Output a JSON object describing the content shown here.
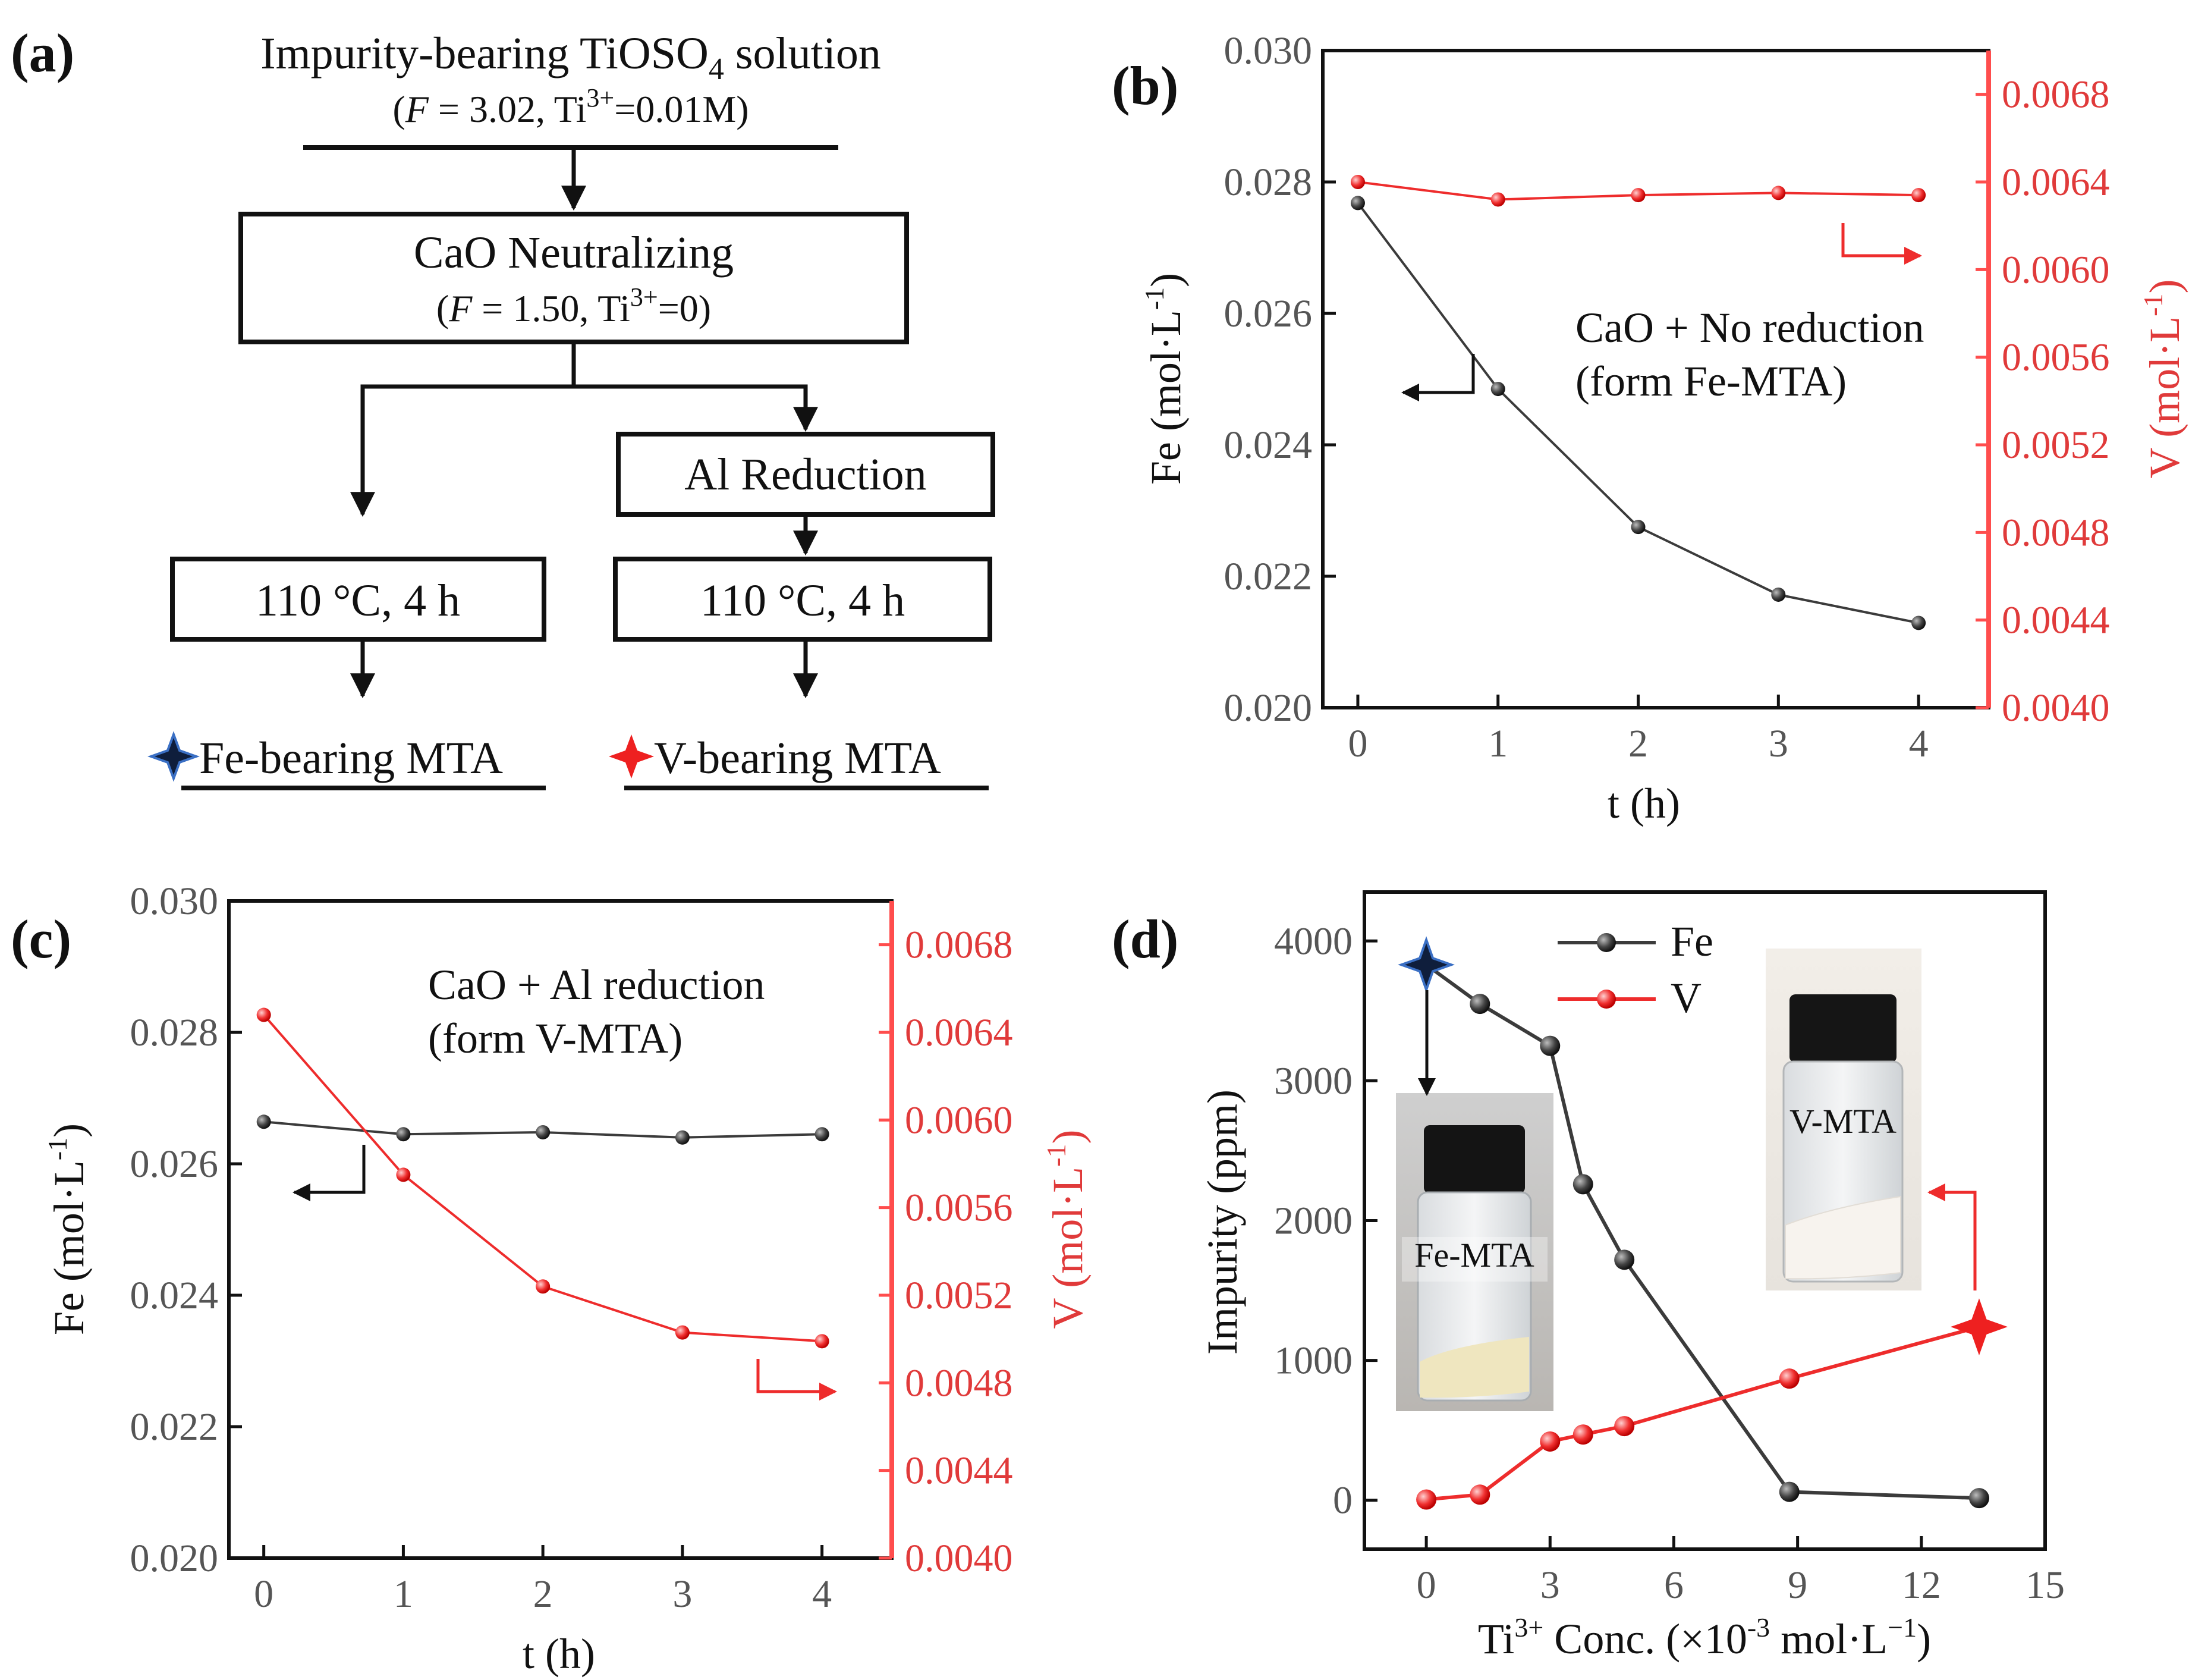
{
  "colors": {
    "fe": "#3b3b3b",
    "v": "#ee2c2c",
    "axis_red": "#ff4d4d",
    "fe_star": "#0f1e3c",
    "text": "#111111"
  },
  "panel_a": {
    "label": "(a)",
    "title": "Impurity-bearing TiOSO",
    "title_sub": "4",
    "title_end": " solution",
    "cond1_pre": "(",
    "cond1_f": "F",
    "cond1_mid": " = 3.02, Ti",
    "cond1_sup": "3+",
    "cond1_end": "=0.01M)",
    "step1": "CaO Neutralizing",
    "cond2_pre": "(",
    "cond2_f": "F",
    "cond2_mid": " = 1.50, Ti",
    "cond2_sup": "3+",
    "cond2_end": "=0)",
    "step2": "Al Reduction",
    "heat_left": "110 °C, 4 h",
    "heat_right": "110 °C, 4 h",
    "product_left": "Fe-bearing MTA",
    "product_right": "V-bearing MTA",
    "star_left_icon": "navy-star-icon",
    "star_right_icon": "red-star-icon"
  },
  "chart_data": [
    {
      "id": "b",
      "label": "(b)",
      "type": "line",
      "x": [
        0,
        1,
        2,
        3,
        4
      ],
      "xlabel": "t (h)",
      "xticks": [
        "0",
        "1",
        "2",
        "3",
        "4"
      ],
      "series": [
        {
          "name": "Fe",
          "axis": "left",
          "values": [
            0.02768,
            0.02485,
            0.02275,
            0.02172,
            0.02129
          ]
        },
        {
          "name": "V",
          "axis": "right",
          "values": [
            0.0064,
            0.00632,
            0.00634,
            0.00635,
            0.00634
          ]
        }
      ],
      "ylabel_left": "Fe (mol·L",
      "ylabel_left_sup": "-1",
      "ylabel_left_end": ")",
      "ylabel_right": "V (mol·L",
      "ylabel_right_sup": "-1",
      "ylabel_right_end": ")",
      "ylim_left": [
        0.02,
        0.03
      ],
      "ylim_right": [
        0.004,
        0.007
      ],
      "yticks_left": [
        "0.020",
        "0.022",
        "0.024",
        "0.026",
        "0.028",
        "0.030"
      ],
      "yticks_right": [
        "0.0040",
        "0.0044",
        "0.0048",
        "0.0052",
        "0.0056",
        "0.0060",
        "0.0064",
        "0.0068"
      ],
      "annotation_1": "CaO + No reduction",
      "annotation_2": "(form Fe-MTA)"
    },
    {
      "id": "c",
      "label": "(c)",
      "type": "line",
      "x": [
        0,
        1,
        2,
        3,
        4
      ],
      "xlabel": "t (h)",
      "xticks": [
        "0",
        "1",
        "2",
        "3",
        "4"
      ],
      "series": [
        {
          "name": "Fe",
          "axis": "left",
          "values": [
            0.02664,
            0.02645,
            0.02648,
            0.0264,
            0.02645
          ]
        },
        {
          "name": "V",
          "axis": "right",
          "values": [
            0.00648,
            0.00575,
            0.00524,
            0.00503,
            0.00499
          ]
        }
      ],
      "ylabel_left": "Fe (mol·L",
      "ylabel_left_sup": "-1",
      "ylabel_left_end": ")",
      "ylabel_right": "V (mol·L",
      "ylabel_right_sup": "-1",
      "ylabel_right_end": ")",
      "ylim_left": [
        0.02,
        0.03
      ],
      "ylim_right": [
        0.004,
        0.007
      ],
      "yticks_left": [
        "0.020",
        "0.022",
        "0.024",
        "0.026",
        "0.028",
        "0.030"
      ],
      "yticks_right": [
        "0.0040",
        "0.0044",
        "0.0048",
        "0.0052",
        "0.0056",
        "0.0060",
        "0.0064",
        "0.0068"
      ],
      "annotation_1": "CaO + Al reduction",
      "annotation_2": "(form V-MTA)"
    },
    {
      "id": "d",
      "label": "(d)",
      "type": "line",
      "xlabel": "Ti",
      "xlabel_sup": "3+",
      "xlabel_mid": " Conc. (×10",
      "xlabel_sup2": "-3",
      "xlabel_end": " mol·L",
      "xlabel_sup3": "−1",
      "xlabel_end2": ")",
      "ylabel": "Impurity (ppm)",
      "xlim": [
        -1.5,
        15
      ],
      "ylim": [
        -350,
        4350
      ],
      "xticks": [
        0,
        3,
        6,
        9,
        12,
        15
      ],
      "yticks": [
        0,
        1000,
        2000,
        3000,
        4000
      ],
      "series": [
        {
          "name": "Fe",
          "x": [
            0,
            1.3,
            3.0,
            3.8,
            4.8,
            8.8,
            13.4
          ],
          "values": [
            3830,
            3550,
            3250,
            2260,
            1720,
            60,
            15
          ]
        },
        {
          "name": "V",
          "x": [
            0,
            1.3,
            3.0,
            3.8,
            4.8,
            8.8,
            13.4
          ],
          "values": [
            5,
            40,
            420,
            470,
            530,
            870,
            1240
          ]
        }
      ],
      "legend": [
        "Fe",
        "V"
      ],
      "photo_left_label": "Fe-MTA",
      "photo_right_label": "V-MTA"
    }
  ]
}
